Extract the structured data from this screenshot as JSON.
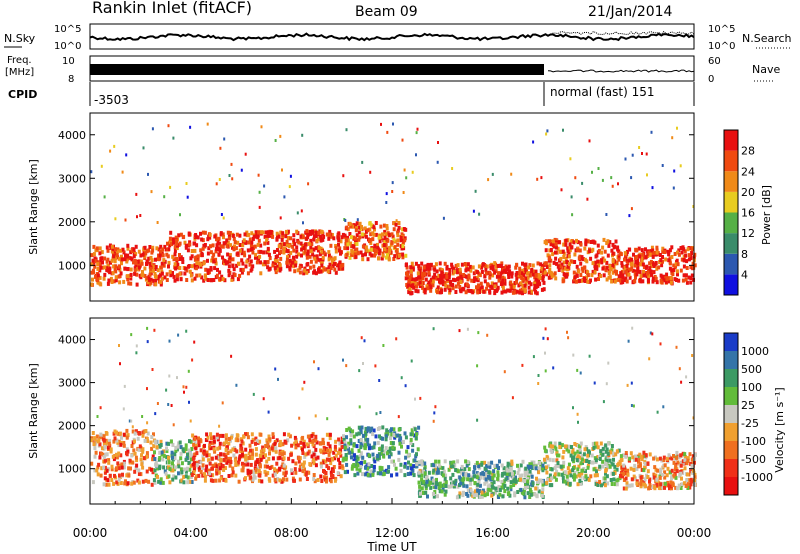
{
  "header": {
    "station": "Rankin Inlet (fitACF)",
    "beam": "Beam 09",
    "date": "21/Jan/2014"
  },
  "noise_panel": {
    "left_label": "N.Sky",
    "right_label": "N.Search",
    "left_ticks": [
      "10^5",
      "10^0"
    ],
    "right_ticks": [
      "10^5",
      "10^0"
    ]
  },
  "freq_panel": {
    "left_label_1": "Freq.",
    "left_label_2": "[MHz]",
    "left_ticks": [
      "10",
      "8"
    ],
    "right_label": "Nave",
    "right_ticks": [
      "60",
      "0"
    ]
  },
  "cpid": {
    "label": "CPID",
    "segments": [
      {
        "start_hour": 0,
        "end_hour": 18,
        "text": "-3503"
      },
      {
        "start_hour": 18,
        "end_hour": 24,
        "text": "normal (fast) 151"
      }
    ]
  },
  "chart_data": [
    {
      "type": "heatmap",
      "quantity": "Power",
      "xlabel": "",
      "ylabel": "Slant Range [km]",
      "colorbar_label": "Power [dB]",
      "colorbar_ticks": [
        "4",
        "8",
        "12",
        "16",
        "20",
        "24",
        "28"
      ],
      "colorbar_colors": [
        "#1010e0",
        "#2c58b0",
        "#3a8c6a",
        "#56b046",
        "#e8cc20",
        "#f08a18",
        "#f04a10",
        "#e81010"
      ],
      "xlim": [
        0,
        24
      ],
      "ylim": [
        180,
        4500
      ],
      "y_ticks": [
        "1000",
        "2000",
        "3000",
        "4000"
      ],
      "y_tick_values": [
        1000,
        2000,
        3000,
        4000
      ],
      "bands": [
        {
          "x0": 0.0,
          "x1": 3.0,
          "r_center": 1050,
          "r_width": 650,
          "level": 0.85
        },
        {
          "x0": 3.0,
          "x1": 6.0,
          "r_center": 1250,
          "r_width": 800,
          "level": 0.9
        },
        {
          "x0": 6.0,
          "x1": 10.0,
          "r_center": 1350,
          "r_width": 700,
          "level": 0.88
        },
        {
          "x0": 10.0,
          "x1": 12.5,
          "r_center": 1600,
          "r_width": 600,
          "level": 0.8
        },
        {
          "x0": 12.5,
          "x1": 18.0,
          "r_center": 750,
          "r_width": 500,
          "level": 0.9
        },
        {
          "x0": 18.0,
          "x1": 21.0,
          "r_center": 1150,
          "r_width": 700,
          "level": 0.85
        },
        {
          "x0": 21.0,
          "x1": 24.0,
          "r_center": 1050,
          "r_width": 600,
          "level": 0.9
        }
      ]
    },
    {
      "type": "heatmap",
      "quantity": "Velocity",
      "xlabel": "Time UT",
      "ylabel": "Slant Range [km]",
      "colorbar_label": "Velocity [m s⁻¹]",
      "colorbar_ticks": [
        "1000",
        "500",
        "100",
        "25",
        "-25",
        "-100",
        "-500",
        "-1000"
      ],
      "colorbar_colors": [
        "#1a3cc8",
        "#3474a8",
        "#3c9a64",
        "#62bc3a",
        "#c8c8c0",
        "#f0a030",
        "#f07020",
        "#f03018",
        "#e81010"
      ],
      "xlim": [
        0,
        24
      ],
      "ylim": [
        180,
        4500
      ],
      "x_ticks": [
        "00:00",
        "04:00",
        "08:00",
        "12:00",
        "16:00",
        "20:00",
        "00:00"
      ],
      "x_tick_values": [
        0,
        4,
        8,
        12,
        16,
        20,
        24
      ],
      "y_ticks": [
        "1000",
        "2000",
        "3000",
        "4000"
      ],
      "y_tick_values": [
        1000,
        2000,
        3000,
        4000
      ],
      "bands": [
        {
          "x0": 0.0,
          "x1": 2.5,
          "r_center": 1300,
          "r_width": 900,
          "level": 0.3
        },
        {
          "x0": 2.5,
          "x1": 4.0,
          "r_center": 1200,
          "r_width": 700,
          "level": 0.6
        },
        {
          "x0": 4.0,
          "x1": 10.0,
          "r_center": 1300,
          "r_width": 800,
          "level": 0.25
        },
        {
          "x0": 10.0,
          "x1": 13.0,
          "r_center": 1450,
          "r_width": 800,
          "level": 0.7
        },
        {
          "x0": 13.0,
          "x1": 18.0,
          "r_center": 800,
          "r_width": 600,
          "level": 0.65
        },
        {
          "x0": 18.0,
          "x1": 21.0,
          "r_center": 1150,
          "r_width": 700,
          "level": 0.55
        },
        {
          "x0": 21.0,
          "x1": 24.0,
          "r_center": 1000,
          "r_width": 600,
          "level": 0.35
        }
      ]
    }
  ]
}
